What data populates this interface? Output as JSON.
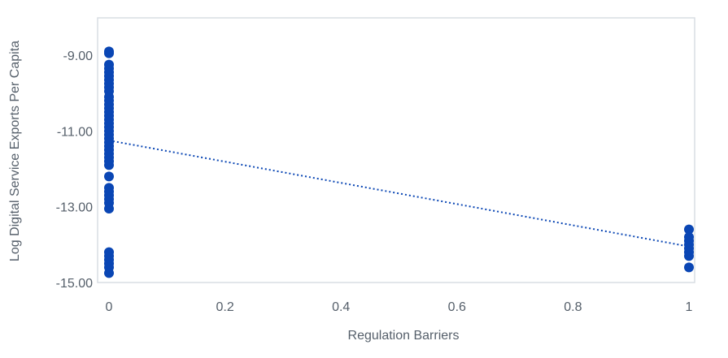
{
  "chart_data": {
    "type": "scatter",
    "xlabel": "Regulation Barriers",
    "ylabel": "Log Digital Service Exports Per Capita",
    "xlim": [
      0,
      1
    ],
    "ylim": [
      -15,
      -8
    ],
    "x_ticks": [
      0,
      0.2,
      0.4,
      0.6,
      0.8,
      1
    ],
    "x_tick_labels": [
      "0",
      "0.2",
      "0.4",
      "0.6",
      "0.8",
      "1"
    ],
    "y_ticks": [
      -15,
      -13,
      -11,
      -9
    ],
    "y_tick_labels": [
      "-15.00",
      "-13.00",
      "-11.00",
      "-9.00"
    ],
    "grid": false,
    "colors": {
      "points": "#0a46b4",
      "trendline": "#0a46b4",
      "frame": "#d9dde3",
      "text": "#555f6a"
    },
    "points": [
      {
        "x": 0,
        "y": -8.9
      },
      {
        "x": 0,
        "y": -8.95
      },
      {
        "x": 0,
        "y": -9.25
      },
      {
        "x": 0,
        "y": -9.35
      },
      {
        "x": 0,
        "y": -9.45
      },
      {
        "x": 0,
        "y": -9.55
      },
      {
        "x": 0,
        "y": -9.65
      },
      {
        "x": 0,
        "y": -9.75
      },
      {
        "x": 0,
        "y": -9.85
      },
      {
        "x": 0,
        "y": -9.95
      },
      {
        "x": 0,
        "y": -10.1
      },
      {
        "x": 0,
        "y": -10.2
      },
      {
        "x": 0,
        "y": -10.3
      },
      {
        "x": 0,
        "y": -10.4
      },
      {
        "x": 0,
        "y": -10.5
      },
      {
        "x": 0,
        "y": -10.6
      },
      {
        "x": 0,
        "y": -10.7
      },
      {
        "x": 0,
        "y": -10.8
      },
      {
        "x": 0,
        "y": -10.9
      },
      {
        "x": 0,
        "y": -11.0
      },
      {
        "x": 0,
        "y": -11.1
      },
      {
        "x": 0,
        "y": -11.2
      },
      {
        "x": 0,
        "y": -11.3
      },
      {
        "x": 0,
        "y": -11.4
      },
      {
        "x": 0,
        "y": -11.5
      },
      {
        "x": 0,
        "y": -11.6
      },
      {
        "x": 0,
        "y": -11.7
      },
      {
        "x": 0,
        "y": -11.8
      },
      {
        "x": 0,
        "y": -11.9
      },
      {
        "x": 0,
        "y": -12.2
      },
      {
        "x": 0,
        "y": -12.5
      },
      {
        "x": 0,
        "y": -12.6
      },
      {
        "x": 0,
        "y": -12.7
      },
      {
        "x": 0,
        "y": -12.8
      },
      {
        "x": 0,
        "y": -12.9
      },
      {
        "x": 0,
        "y": -13.05
      },
      {
        "x": 0,
        "y": -14.2
      },
      {
        "x": 0,
        "y": -14.3
      },
      {
        "x": 0,
        "y": -14.4
      },
      {
        "x": 0,
        "y": -14.5
      },
      {
        "x": 0,
        "y": -14.6
      },
      {
        "x": 0,
        "y": -14.75
      },
      {
        "x": 1,
        "y": -13.6
      },
      {
        "x": 1,
        "y": -13.8
      },
      {
        "x": 1,
        "y": -13.9
      },
      {
        "x": 1,
        "y": -14.0
      },
      {
        "x": 1,
        "y": -14.1
      },
      {
        "x": 1,
        "y": -14.2
      },
      {
        "x": 1,
        "y": -14.3
      },
      {
        "x": 1,
        "y": -14.6
      }
    ],
    "trendline": {
      "style": "dotted",
      "x": [
        0,
        1
      ],
      "y": [
        -11.25,
        -14.05
      ]
    }
  }
}
